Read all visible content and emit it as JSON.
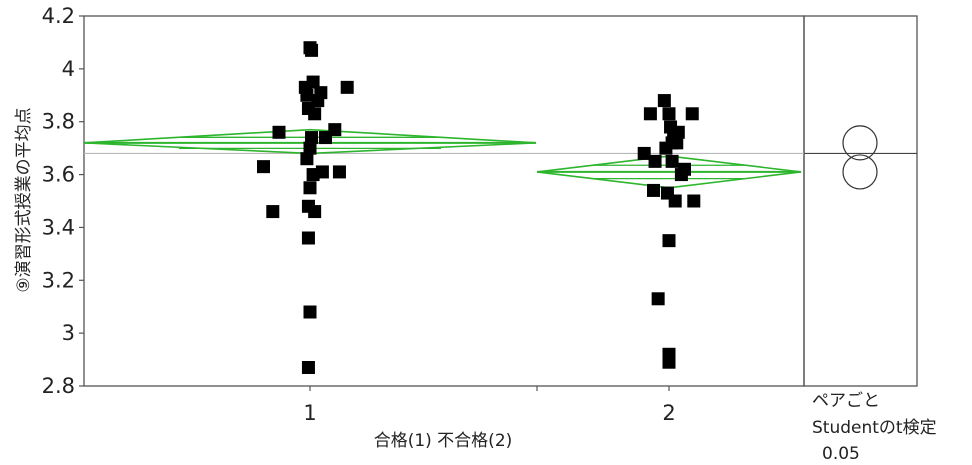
{
  "chart_data": {
    "type": "scatter",
    "ylabel": "⑨演習形式授業の平均点",
    "xlabel": "合格(1) 不合格(2)",
    "categories": [
      "1",
      "2"
    ],
    "ylim": [
      2.8,
      4.2
    ],
    "yticks": [
      2.8,
      3,
      3.2,
      3.4,
      3.6,
      3.8,
      4,
      4.2
    ],
    "ytick_labels": [
      "2.8",
      "3",
      "3.2",
      "3.4",
      "3.6",
      "3.8",
      "4",
      "4.2"
    ],
    "grand_mean": 3.68,
    "means_diamonds": [
      {
        "category": "1",
        "mean": 3.72,
        "lower": 3.68,
        "upper": 3.77
      },
      {
        "category": "2",
        "mean": 3.61,
        "lower": 3.55,
        "upper": 3.67
      }
    ],
    "series": [
      {
        "category": "1",
        "points": [
          {
            "x": -0.3,
            "y": 3.63
          },
          {
            "x": -0.24,
            "y": 3.46
          },
          {
            "x": -0.2,
            "y": 3.76
          },
          {
            "x": -0.03,
            "y": 3.93
          },
          {
            "x": -0.01,
            "y": 3.85
          },
          {
            "x": 0.0,
            "y": 4.08
          },
          {
            "x": 0.01,
            "y": 4.07
          },
          {
            "x": -0.02,
            "y": 3.66
          },
          {
            "x": 0.0,
            "y": 3.55
          },
          {
            "x": -0.01,
            "y": 3.48
          },
          {
            "x": 0.02,
            "y": 3.6
          },
          {
            "x": 0.0,
            "y": 3.7
          },
          {
            "x": 0.01,
            "y": 3.74
          },
          {
            "x": 0.03,
            "y": 3.83
          },
          {
            "x": 0.05,
            "y": 3.88
          },
          {
            "x": 0.07,
            "y": 3.91
          },
          {
            "x": 0.03,
            "y": 3.46
          },
          {
            "x": -0.01,
            "y": 3.36
          },
          {
            "x": 0.0,
            "y": 3.08
          },
          {
            "x": -0.01,
            "y": 2.87
          },
          {
            "x": 0.08,
            "y": 3.61
          },
          {
            "x": 0.1,
            "y": 3.74
          },
          {
            "x": 0.16,
            "y": 3.77
          },
          {
            "x": 0.19,
            "y": 3.61
          },
          {
            "x": 0.24,
            "y": 3.93
          },
          {
            "x": 0.02,
            "y": 3.95
          },
          {
            "x": -0.02,
            "y": 3.9
          }
        ]
      },
      {
        "category": "2",
        "points": [
          {
            "x": -0.12,
            "y": 3.83
          },
          {
            "x": -0.03,
            "y": 3.88
          },
          {
            "x": 0.0,
            "y": 3.83
          },
          {
            "x": 0.01,
            "y": 3.78
          },
          {
            "x": 0.03,
            "y": 3.74
          },
          {
            "x": 0.05,
            "y": 3.72
          },
          {
            "x": 0.06,
            "y": 3.76
          },
          {
            "x": 0.15,
            "y": 3.83
          },
          {
            "x": -0.16,
            "y": 3.68
          },
          {
            "x": -0.09,
            "y": 3.65
          },
          {
            "x": 0.02,
            "y": 3.65
          },
          {
            "x": 0.08,
            "y": 3.6
          },
          {
            "x": 0.1,
            "y": 3.62
          },
          {
            "x": -0.1,
            "y": 3.54
          },
          {
            "x": -0.01,
            "y": 3.53
          },
          {
            "x": 0.04,
            "y": 3.5
          },
          {
            "x": 0.16,
            "y": 3.5
          },
          {
            "x": 0.0,
            "y": 3.35
          },
          {
            "x": -0.07,
            "y": 3.13
          },
          {
            "x": 0.0,
            "y": 2.92
          },
          {
            "x": 0.0,
            "y": 2.89
          },
          {
            "x": 0.02,
            "y": 3.72
          },
          {
            "x": -0.02,
            "y": 3.7
          }
        ]
      }
    ],
    "comparison_circles": [
      {
        "center": 3.72
      },
      {
        "center": 3.61
      }
    ],
    "side_panel_labels": [
      "ペアごと",
      "Studentのt検定",
      "0.05"
    ],
    "colors": {
      "diamond": "#2db52d",
      "points": "#000000",
      "mean_line": "#b8b8b8",
      "axis": "#555555"
    }
  }
}
